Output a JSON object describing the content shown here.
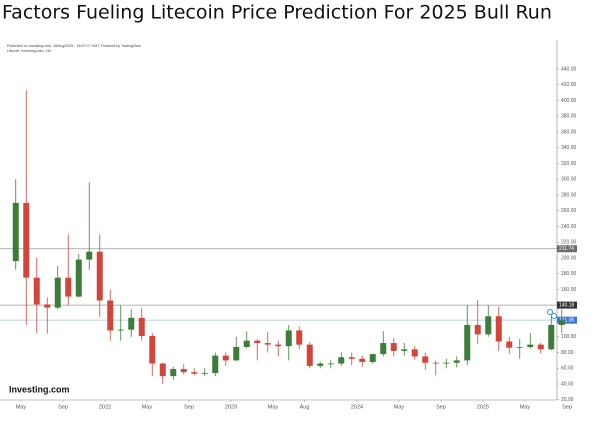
{
  "chart_data": {
    "type": "candlestick",
    "title": "Factors Fueling Litecoin Price Prediction For 2025 Bull Run",
    "published": "Published on Investing.com, 18/Aug/2025 - 18:07:07 GMT, Powered by TradingView",
    "instrument": "Litecoin, Investing.com, 1W",
    "logo": "Investing.com",
    "up_color": "#3d7d3a",
    "down_color": "#d2453a",
    "x": [
      "2021-04",
      "2021-05",
      "2021-06",
      "2021-07",
      "2021-08",
      "2021-09",
      "2021-10",
      "2021-11",
      "2021-12",
      "2022-01",
      "2022-02",
      "2022-03",
      "2022-04",
      "2022-05",
      "2022-06",
      "2022-07",
      "2022-08",
      "2022-09",
      "2022-10",
      "2022-11",
      "2022-12",
      "2023-01",
      "2023-02",
      "2023-03",
      "2023-04",
      "2023-05",
      "2023-06",
      "2023-07",
      "2023-08",
      "2023-09",
      "2023-10",
      "2023-11",
      "2023-12",
      "2024-01",
      "2024-02",
      "2024-03",
      "2024-04",
      "2024-05",
      "2024-06",
      "2024-07",
      "2024-08",
      "2024-09",
      "2024-10",
      "2024-11",
      "2024-12",
      "2025-01",
      "2025-02",
      "2025-03",
      "2025-04",
      "2025-05",
      "2025-06",
      "2025-07",
      "2025-08"
    ],
    "open": [
      196,
      270,
      175,
      141,
      137,
      175,
      151,
      198,
      208,
      146,
      108,
      109,
      124,
      101,
      66,
      50,
      59,
      55,
      53,
      54,
      76,
      70,
      87,
      95,
      92,
      90,
      88,
      108,
      90,
      63,
      66,
      66,
      74,
      72,
      68,
      78,
      92,
      82,
      84,
      75,
      67,
      66,
      67,
      70,
      115,
      103,
      126,
      94,
      86,
      87,
      90,
      84,
      115
    ],
    "high": [
      300,
      413,
      200,
      150,
      190,
      230,
      205,
      296,
      230,
      160,
      140,
      135,
      136,
      105,
      67,
      62,
      65,
      60,
      60,
      80,
      80,
      100,
      107,
      97,
      106,
      95,
      115,
      113,
      93,
      68,
      70,
      80,
      80,
      76,
      78,
      107,
      98,
      92,
      88,
      80,
      70,
      72,
      75,
      140,
      147,
      140,
      138,
      100,
      97,
      105,
      92,
      125,
      135
    ],
    "low": [
      185,
      115,
      105,
      104,
      135,
      140,
      150,
      185,
      125,
      95,
      95,
      100,
      95,
      50,
      40,
      45,
      52,
      51,
      50,
      50,
      63,
      69,
      85,
      70,
      80,
      75,
      70,
      84,
      60,
      60,
      60,
      63,
      64,
      62,
      66,
      75,
      75,
      76,
      71,
      58,
      51,
      60,
      61,
      64,
      91,
      100,
      82,
      78,
      72,
      85,
      79,
      83,
      105
    ],
    "close": [
      270,
      175,
      141,
      137,
      175,
      151,
      198,
      208,
      146,
      108,
      109,
      124,
      101,
      66,
      50,
      59,
      55,
      53,
      54,
      76,
      70,
      87,
      95,
      92,
      90,
      88,
      108,
      90,
      63,
      66,
      66,
      74,
      72,
      68,
      78,
      92,
      82,
      84,
      75,
      67,
      66,
      67,
      70,
      115,
      103,
      126,
      94,
      86,
      87,
      90,
      84,
      115,
      121
    ],
    "xlim": [
      "2021-03",
      "2025-09"
    ],
    "xticks": [
      {
        "value": "2021-05",
        "label": "May"
      },
      {
        "value": "2021-09",
        "label": "Sep"
      },
      {
        "value": "2022-01",
        "label": "2022"
      },
      {
        "value": "2022-05",
        "label": "May"
      },
      {
        "value": "2022-09",
        "label": "Sep"
      },
      {
        "value": "2023-01",
        "label": "2023"
      },
      {
        "value": "2023-05",
        "label": "May"
      },
      {
        "value": "2023-08",
        "label": "Aug"
      },
      {
        "value": "2024-01",
        "label": "2024"
      },
      {
        "value": "2024-05",
        "label": "May"
      },
      {
        "value": "2024-09",
        "label": "Sep"
      },
      {
        "value": "2025-01",
        "label": "2025"
      },
      {
        "value": "2025-05",
        "label": "May"
      },
      {
        "value": "2025-09",
        "label": "Sep"
      }
    ],
    "ylim": [
      20,
      450
    ],
    "yticks": [
      {
        "value": 20,
        "label": "20.00"
      },
      {
        "value": 40,
        "label": "40.00"
      },
      {
        "value": 60,
        "label": "60.00"
      },
      {
        "value": 80,
        "label": "80.00"
      },
      {
        "value": 100,
        "label": "100.00"
      },
      {
        "value": 120,
        "label": "120.00"
      },
      {
        "value": 140,
        "label": "140.00"
      },
      {
        "value": 160,
        "label": "160.00"
      },
      {
        "value": 180,
        "label": "180.00"
      },
      {
        "value": 200,
        "label": "200.00"
      },
      {
        "value": 220,
        "label": "220.00"
      },
      {
        "value": 240,
        "label": "240.00"
      },
      {
        "value": 260,
        "label": "260.00"
      },
      {
        "value": 280,
        "label": "280.00"
      },
      {
        "value": 300,
        "label": "300.00"
      },
      {
        "value": 320,
        "label": "320.00"
      },
      {
        "value": 340,
        "label": "340.00"
      },
      {
        "value": 360,
        "label": "360.00"
      },
      {
        "value": 380,
        "label": "380.00"
      },
      {
        "value": 400,
        "label": "400.00"
      },
      {
        "value": 420,
        "label": "420.00"
      },
      {
        "value": 440,
        "label": "440.00"
      }
    ],
    "levels": [
      {
        "value": 211.74,
        "color": "#9a9a9a",
        "box": "#6b6b6b"
      },
      {
        "value": 140.18,
        "color": "#9a9a9a",
        "box": "#333333"
      },
      {
        "value": 121.06,
        "color": "#a9bff0",
        "box": "#3b73d6"
      }
    ]
  }
}
